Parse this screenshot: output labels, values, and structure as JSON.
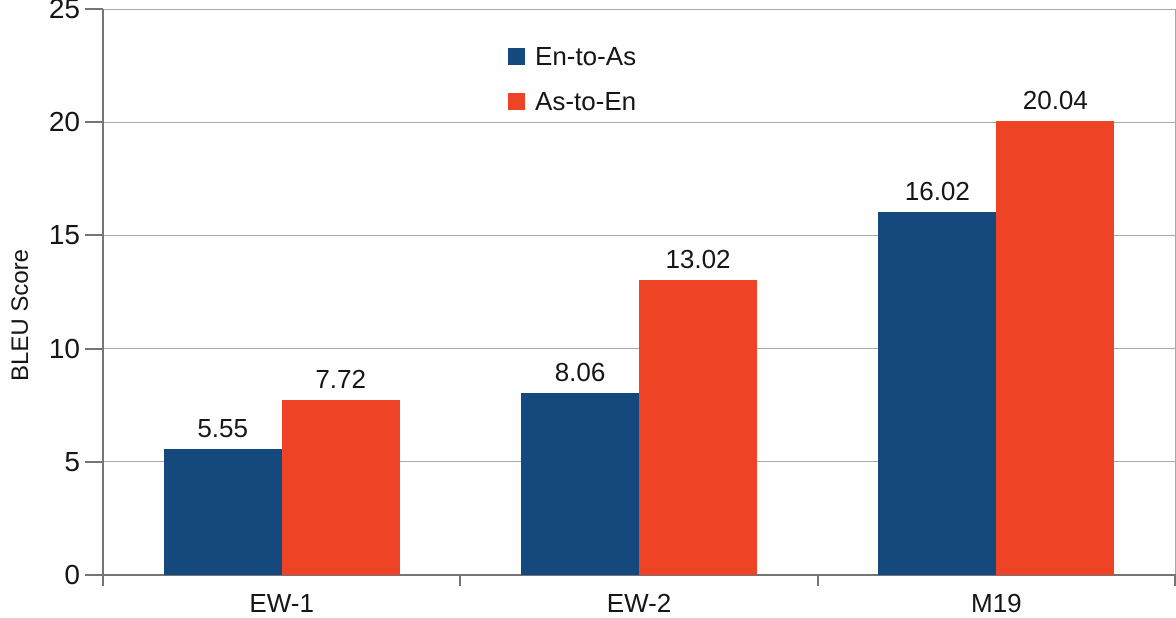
{
  "chart_data": {
    "type": "bar",
    "title": "",
    "xlabel": "",
    "ylabel": "BLEU Score",
    "categories": [
      "EW-1",
      "EW-2",
      "M19"
    ],
    "series": [
      {
        "name": "En-to-As",
        "color": "#15497E",
        "values": [
          5.55,
          8.06,
          16.02
        ]
      },
      {
        "name": "As-to-En",
        "color": "#EF4326",
        "values": [
          7.72,
          13.02,
          20.04
        ]
      }
    ],
    "value_labels": [
      "5.55",
      "7.72",
      "8.06",
      "13.02",
      "16.02",
      "20.04"
    ],
    "ylim": [
      0,
      25
    ],
    "y_ticks": [
      0,
      5,
      10,
      15,
      20,
      25
    ],
    "grid": true,
    "legend_position": "top-center"
  },
  "colors": {
    "background": "#fefefe",
    "grid": "#a9a9a9",
    "axis": "#757575",
    "text": "#161616",
    "series_blue": "#15497E",
    "series_red": "#EF4326"
  }
}
